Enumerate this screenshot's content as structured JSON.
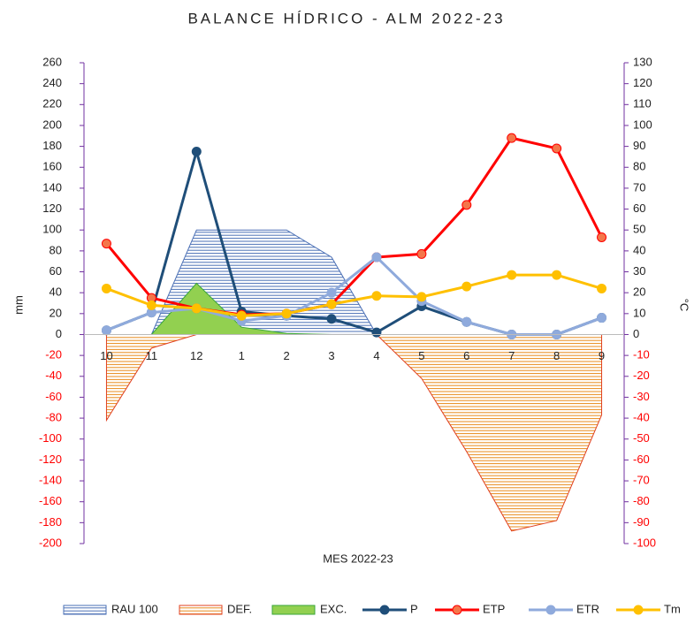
{
  "chart_data": {
    "type": "line",
    "title": "BALANCE HÍDRICO - ALM 2022-23",
    "x_label": "MES 2022-23",
    "y_label": "mm",
    "y2_label": "°C",
    "categories": [
      "10",
      "11",
      "12",
      "1",
      "2",
      "3",
      "4",
      "5",
      "6",
      "7",
      "8",
      "9"
    ],
    "ylim": [
      -200,
      260
    ],
    "yticks": [
      -200,
      -180,
      -160,
      -140,
      -120,
      -100,
      -80,
      -60,
      -40,
      -20,
      0,
      20,
      40,
      60,
      80,
      100,
      120,
      140,
      160,
      180,
      200,
      220,
      240,
      260
    ],
    "y2lim": [
      -100,
      130
    ],
    "y2ticks": [
      -100,
      -90,
      -80,
      -70,
      -60,
      -50,
      -40,
      -30,
      -20,
      -10,
      0,
      10,
      20,
      30,
      40,
      50,
      60,
      70,
      80,
      90,
      100,
      110,
      120,
      130
    ],
    "negative_tick_color": "#ff0000",
    "axis_color": "#7030a0",
    "legend": "bottom",
    "series": [
      {
        "name": "RAU 100",
        "style": "hatched-area",
        "color": "#4a6fb5",
        "values": [
          0,
          0,
          100,
          100,
          100,
          74,
          0,
          0,
          0,
          0,
          0,
          0
        ]
      },
      {
        "name": "DEF.",
        "style": "hatched-area",
        "color": "#e88a1a",
        "border": "#e04020",
        "values": [
          -82,
          -13,
          0,
          0,
          0,
          0,
          0,
          -42,
          -112,
          -188,
          -178,
          -77
        ]
      },
      {
        "name": "EXC.",
        "style": "area",
        "color": "#92d050",
        "border": "#3aa63a",
        "values": [
          0,
          0,
          49,
          7,
          1,
          0,
          0,
          0,
          0,
          0,
          0,
          0
        ]
      },
      {
        "name": "P",
        "style": "line",
        "color": "#1f4e79",
        "values": [
          4,
          21,
          175,
          22,
          18,
          15,
          2,
          27,
          12,
          0,
          0,
          16
        ]
      },
      {
        "name": "ETP",
        "style": "line",
        "color": "#ff0000",
        "marker": "#f4764a",
        "values": [
          87,
          35,
          25,
          19,
          20,
          29,
          74,
          77,
          124,
          188,
          178,
          93
        ]
      },
      {
        "name": "ETR",
        "style": "line",
        "color": "#8faadc",
        "values": [
          4,
          21,
          25,
          13,
          18,
          40,
          74,
          32,
          12,
          0,
          0,
          16
        ]
      },
      {
        "name": "Tm",
        "style": "line",
        "axis": "y2",
        "color": "#ffc000",
        "values": [
          22,
          14,
          12.5,
          9,
          10,
          14.5,
          18.5,
          18,
          23,
          28.5,
          28.5,
          22
        ]
      }
    ]
  }
}
